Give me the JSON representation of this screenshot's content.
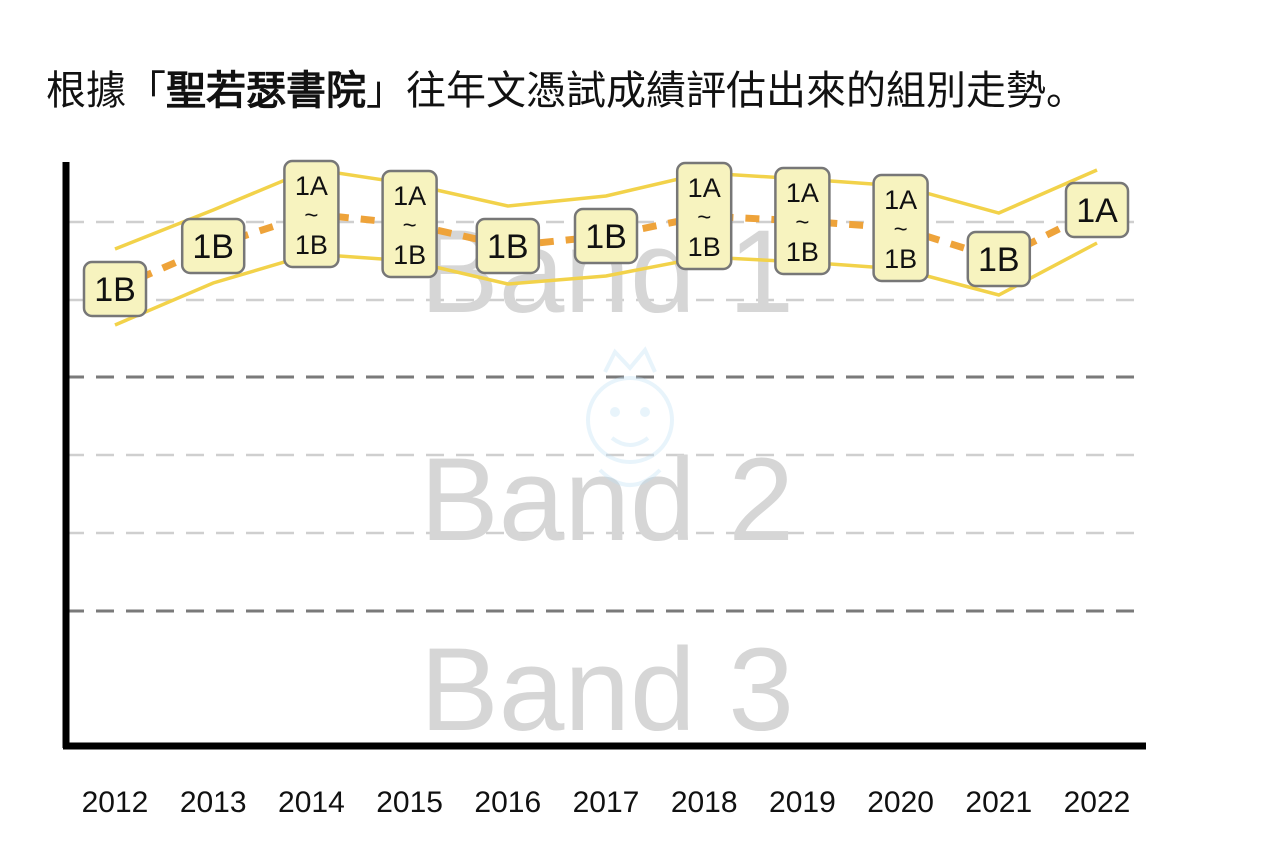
{
  "title": {
    "prefix": "根據「",
    "school": "聖若瑟書院",
    "suffix": "」往年文憑試成績評估出來的組別走勢。"
  },
  "chart_data": {
    "type": "line",
    "band_labels": [
      "Band 1",
      "Band 2",
      "Band 3"
    ],
    "categories": [
      "2012",
      "2013",
      "2014",
      "2015",
      "2016",
      "2017",
      "2018",
      "2019",
      "2020",
      "2021",
      "2022"
    ],
    "grades": [
      "1B",
      "1B",
      "1A~1B",
      "1A~1B",
      "1B",
      "1B",
      "1A~1B",
      "1A~1B",
      "1A~1B",
      "1B",
      "1A"
    ],
    "colors": {
      "band_line": "#f2d24a",
      "trend_line": "#eea33a",
      "box_fill": "#f7f3bf",
      "box_stroke": "#777777",
      "band_text": "#d6d6d6"
    },
    "grid": true
  }
}
